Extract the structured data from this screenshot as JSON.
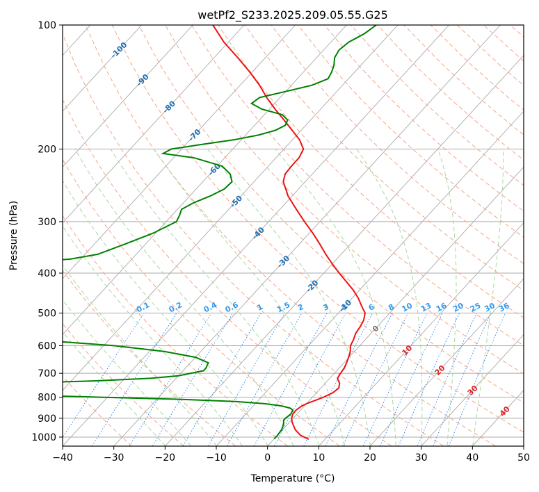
{
  "chart_data": {
    "type": "line",
    "subtype": "skew-T log-P diagram",
    "title": "wetPf2_S233.2025.209.05.55.G25",
    "xlabel": "Temperature (°C)",
    "ylabel": "Pressure (hPa)",
    "xlim": [
      -40,
      50
    ],
    "ylim": [
      1050,
      100
    ],
    "y_scale": "log",
    "grid": true,
    "x_ticks": [
      -40,
      -30,
      -20,
      -10,
      0,
      10,
      20,
      30,
      40,
      50
    ],
    "y_ticks": [
      100,
      200,
      300,
      400,
      500,
      600,
      700,
      800,
      900,
      1000
    ],
    "colors": {
      "temperature": "#ee1111",
      "dewpoint": "#008000",
      "isotherm": "#aaaaaa",
      "dry_adiabat": "#f5a588",
      "moist_adiabat": "#a8d8a0",
      "mixing_ratio": "#3388ee",
      "isotherm_labels": "#1f6fb4",
      "mixing_labels": "#3399ee",
      "frame": "#000000"
    },
    "isotherm_labels": [
      {
        "value": -100,
        "p": 115,
        "text": "-100"
      },
      {
        "value": -90,
        "p": 136,
        "text": "-90"
      },
      {
        "value": -80,
        "p": 158,
        "text": "-80"
      },
      {
        "value": -70,
        "p": 185,
        "text": "-70"
      },
      {
        "value": -60,
        "p": 224,
        "text": "-60"
      },
      {
        "value": -50,
        "p": 268,
        "text": "-50"
      },
      {
        "value": -40,
        "p": 320,
        "text": "-40"
      },
      {
        "value": -30,
        "p": 375,
        "text": "-30"
      },
      {
        "value": -20,
        "p": 430,
        "text": "-20"
      },
      {
        "value": -10,
        "p": 480,
        "text": "-10"
      },
      {
        "value": 0,
        "p": 545,
        "text": "0"
      },
      {
        "value": 10,
        "p": 615,
        "text": "10"
      },
      {
        "value": 20,
        "p": 688,
        "text": "20"
      },
      {
        "value": 30,
        "p": 770,
        "text": "30"
      },
      {
        "value": 40,
        "p": 865,
        "text": "40"
      }
    ],
    "mixing_ratio_labels": [
      "0.1",
      "0.2",
      "0.4",
      "0.6",
      "1",
      "1.5",
      "2",
      "3",
      "4",
      "6",
      "8",
      "10",
      "13",
      "16",
      "20",
      "25",
      "30",
      "36"
    ],
    "series": [
      {
        "name": "Temperature",
        "p": [
          1012,
          990,
          960,
          920,
          900,
          880,
          860,
          840,
          830,
          820,
          800,
          780,
          760,
          740,
          720,
          700,
          680,
          660,
          640,
          620,
          600,
          580,
          560,
          540,
          520,
          500,
          480,
          460,
          440,
          420,
          400,
          380,
          360,
          340,
          320,
          300,
          280,
          260,
          250,
          240,
          230,
          220,
          210,
          200,
          190,
          180,
          170,
          160,
          150,
          140,
          130,
          120,
          110,
          100
        ],
        "T": [
          6.8,
          4.5,
          2.5,
          0.5,
          -0.3,
          -0.8,
          -0.9,
          -0.5,
          0.0,
          0.7,
          2.2,
          3.2,
          3.5,
          2.8,
          1.5,
          1.2,
          1.0,
          0.5,
          -0.1,
          -0.8,
          -1.8,
          -2.3,
          -3.0,
          -3.3,
          -3.8,
          -4.8,
          -6.8,
          -8.8,
          -11.2,
          -14.0,
          -17.0,
          -20.0,
          -23.0,
          -26.0,
          -29.3,
          -33.0,
          -36.8,
          -40.8,
          -42.5,
          -44.3,
          -45.3,
          -45.5,
          -45.5,
          -46.2,
          -48.6,
          -51.8,
          -55.2,
          -58.9,
          -62.6,
          -66.2,
          -70.5,
          -75.4,
          -80.9,
          -86.1
        ]
      },
      {
        "name": "Dewpoint",
        "p": [
          1010,
          990,
          960,
          930,
          910,
          900,
          880,
          860,
          850,
          840,
          830,
          820,
          810,
          800,
          790,
          780,
          770,
          760,
          750,
          740,
          730,
          720,
          710,
          700,
          690,
          680,
          660,
          640,
          620,
          600,
          580,
          560,
          540,
          520,
          500,
          480,
          460,
          440,
          420,
          400,
          390,
          380,
          370,
          360,
          340,
          320,
          300,
          290,
          280,
          270,
          260,
          250,
          240,
          230,
          220,
          210,
          205,
          200,
          195,
          190,
          185,
          180,
          175,
          170,
          165,
          160,
          155,
          150,
          145,
          140,
          135,
          130,
          125,
          120,
          115,
          110,
          105,
          100
        ],
        "Td": [
          0.0,
          0.0,
          -0.2,
          -0.8,
          -1.5,
          -1.5,
          -1.2,
          -1.5,
          -2.5,
          -4.5,
          -8.0,
          -14.0,
          -25.0,
          -42.0,
          -58.0,
          -70.0,
          -72.0,
          -72.0,
          -70.0,
          -60.0,
          -45.0,
          -35.0,
          -30.0,
          -28.0,
          -26.0,
          -26.0,
          -26.5,
          -30.0,
          -37.0,
          -48.0,
          -65.0,
          -80.0,
          -90.0,
          -95.0,
          -98.0,
          -99.0,
          -99.5,
          -99.5,
          -99.5,
          -99.5,
          -96.0,
          -85.0,
          -72.0,
          -67.5,
          -64.0,
          -60.5,
          -58.0,
          -58.5,
          -59.2,
          -58.0,
          -56.0,
          -54.5,
          -54.3,
          -56.0,
          -59.0,
          -66.0,
          -72.8,
          -72.0,
          -67.0,
          -61.5,
          -57.5,
          -55.0,
          -54.0,
          -54.5,
          -56.5,
          -61.5,
          -64.5,
          -64.0,
          -60.0,
          -56.0,
          -54.0,
          -54.5,
          -55.3,
          -56.5,
          -57.0,
          -56.5,
          -55.0,
          -54.2
        ]
      }
    ]
  }
}
